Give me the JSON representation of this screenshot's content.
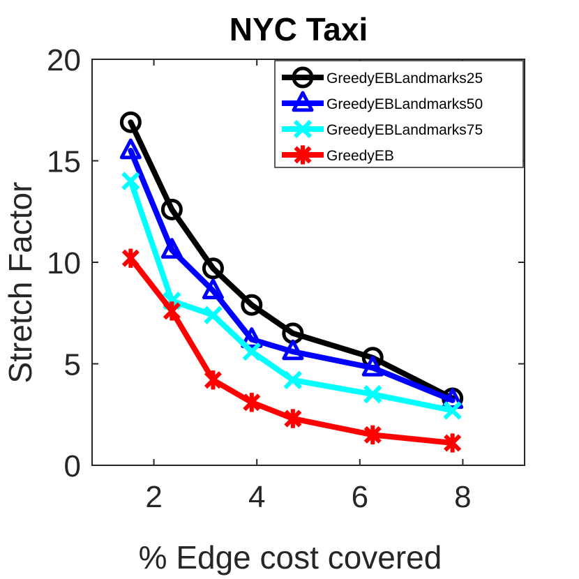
{
  "chart_data": {
    "type": "line",
    "title": "NYC Taxi",
    "xlabel": "% Edge cost covered",
    "ylabel": "Stretch Factor",
    "xlim": [
      0.8,
      9.2
    ],
    "ylim": [
      0,
      20
    ],
    "xticks": [
      2,
      4,
      6,
      8
    ],
    "yticks": [
      0,
      5,
      10,
      15,
      20
    ],
    "x": [
      1.55,
      2.35,
      3.15,
      3.9,
      4.7,
      6.25,
      7.8
    ],
    "legend_position": "top-right",
    "grid": false,
    "series": [
      {
        "name": "GreedyEBLandmarks25",
        "color": "#000000",
        "marker": "circle",
        "values": [
          16.9,
          12.6,
          9.7,
          7.9,
          6.5,
          5.3,
          3.3
        ]
      },
      {
        "name": "GreedyEBLandmarks50",
        "color": "#0000ff",
        "marker": "triangle",
        "values": [
          15.5,
          10.6,
          8.6,
          6.2,
          5.6,
          4.8,
          3.2
        ]
      },
      {
        "name": "GreedyEBLandmarks75",
        "color": "#00ffff",
        "marker": "x",
        "values": [
          14.0,
          8.1,
          7.4,
          5.6,
          4.2,
          3.5,
          2.7
        ]
      },
      {
        "name": "GreedyEB",
        "color": "#ff0000",
        "marker": "asterisk",
        "values": [
          10.2,
          7.6,
          4.2,
          3.1,
          2.3,
          1.5,
          1.1
        ]
      }
    ]
  }
}
